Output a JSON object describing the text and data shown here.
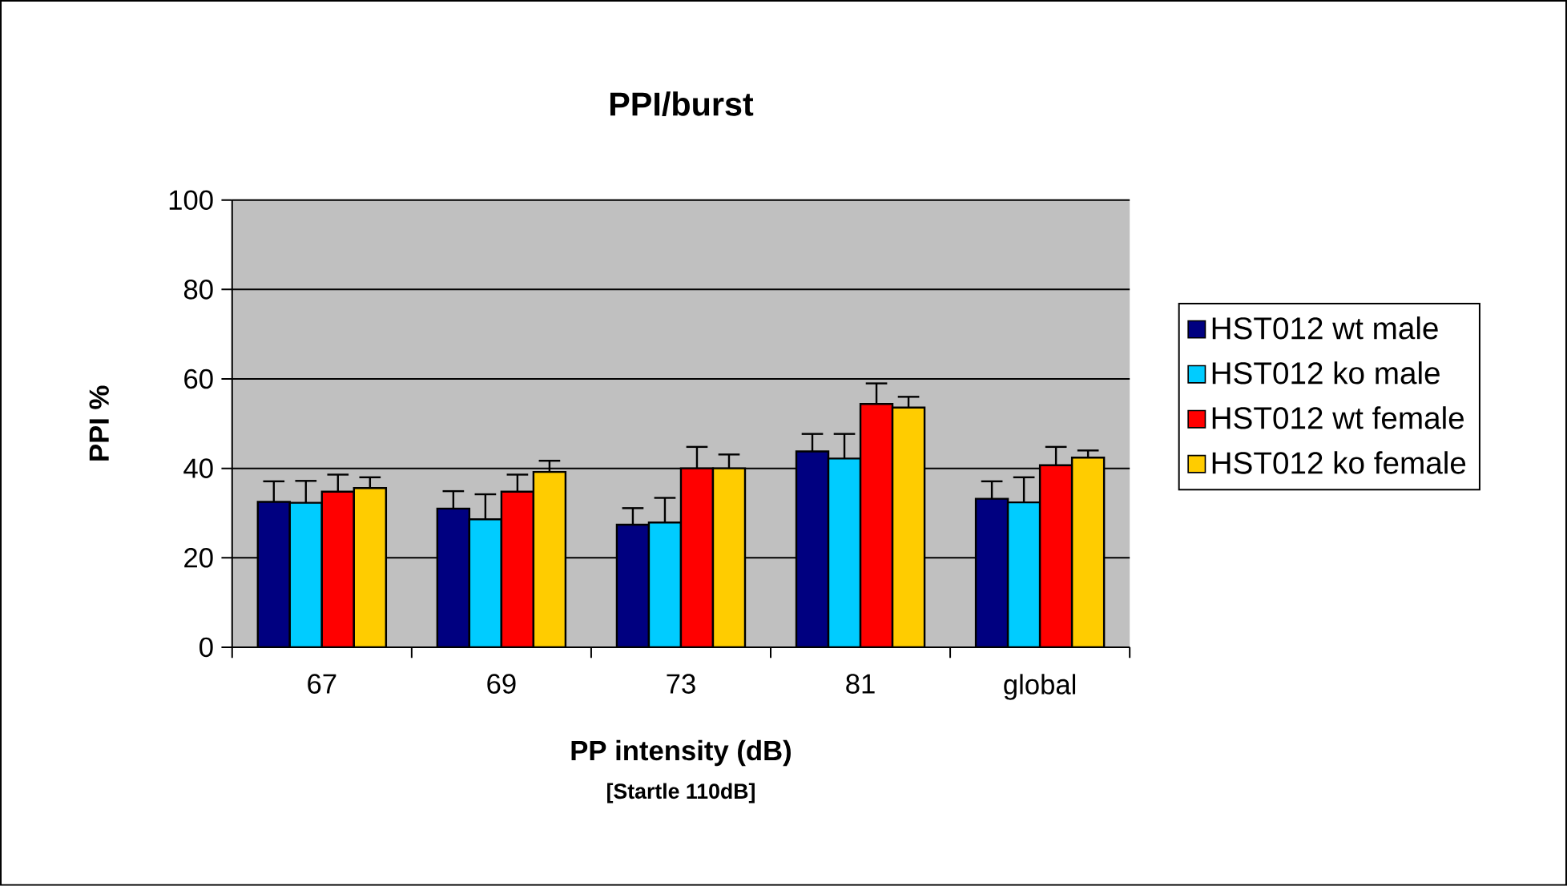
{
  "chart_data": {
    "type": "bar",
    "title": "PPI/burst",
    "xlabel": "PP intensity (dB)",
    "ylabel": "PPI %",
    "annotations": [
      "[Startle 110dB]"
    ],
    "categories": [
      "67",
      "69",
      "73",
      "81",
      "global"
    ],
    "series": [
      {
        "name": "HST012 wt male",
        "color": "#000080",
        "values": [
          32.5,
          31.0,
          27.4,
          43.8,
          33.2
        ],
        "errors": [
          [
            32.5,
            37.1
          ],
          [
            31.0,
            34.9
          ],
          [
            27.4,
            31.1
          ],
          [
            43.8,
            47.7
          ],
          [
            33.2,
            37.1
          ]
        ]
      },
      {
        "name": "HST012 ko male",
        "color": "#00ccff",
        "values": [
          32.3,
          28.6,
          27.9,
          42.2,
          32.4
        ],
        "errors": [
          [
            32.3,
            37.2
          ],
          [
            28.6,
            34.2
          ],
          [
            27.9,
            33.4
          ],
          [
            42.2,
            47.7
          ],
          [
            32.4,
            38.0
          ]
        ]
      },
      {
        "name": "HST012 wt female",
        "color": "#ff0000",
        "values": [
          34.8,
          34.8,
          40.0,
          54.4,
          40.7
        ],
        "errors": [
          [
            34.8,
            38.6
          ],
          [
            34.8,
            38.6
          ],
          [
            40.0,
            44.8
          ],
          [
            54.4,
            59.0
          ],
          [
            40.7,
            44.8
          ]
        ]
      },
      {
        "name": "HST012 ko female",
        "color": "#ffcc00",
        "values": [
          35.6,
          39.2,
          40.0,
          53.6,
          42.4
        ],
        "errors": [
          [
            35.6,
            38.0
          ],
          [
            39.2,
            41.7
          ],
          [
            40.0,
            43.1
          ],
          [
            53.6,
            56.0
          ],
          [
            42.4,
            44.0
          ]
        ]
      }
    ],
    "ylim": [
      0,
      100
    ],
    "yticks": [
      0,
      20,
      40,
      60,
      80,
      100
    ],
    "grid": "y",
    "legend": "right"
  }
}
